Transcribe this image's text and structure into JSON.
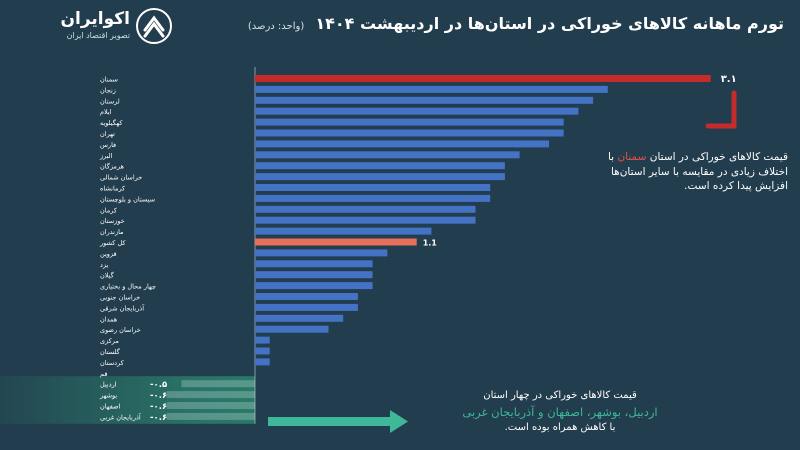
{
  "brand": {
    "name": "اکوایران",
    "tagline": "تصویر اقتصاد ایران"
  },
  "header": {
    "title": "تورم ماهانه کالاهای خوراکی در استان‌ها در اردیبهشت ۱۴۰۴",
    "unit": "(واحد: درصد)"
  },
  "annotations": {
    "red_note_prefix": "قیمت کالاهای خوراکی در استان",
    "red_note_highlight": "سمنان",
    "red_note_suffix": "با اختلاف زیادی در مقایسه با سایر استان‌ها افزایش پیدا کرده است.",
    "green_note_line1": "قیمت کالاهای خوراکی در چهار استان",
    "green_note_highlight": "اردبیل، بوشهر، اصفهان و آذربایجان غربی",
    "green_note_line3": "با کاهش همراه بوده است."
  },
  "colors": {
    "background": "#223d4d",
    "bar": "#4472c4",
    "highlight_max": "#c42b2b",
    "highlight_national": "#e8705a",
    "negative_band": "#2a7c6a",
    "accent_green": "#3fb89a",
    "accent_red": "#c42b2b"
  },
  "chart_data": {
    "type": "bar",
    "orientation": "horizontal",
    "categories": [
      "سمنان",
      "زنجان",
      "لرستان",
      "ایلام",
      "کهگیلویه",
      "تهران",
      "فارس",
      "البرز",
      "هرمزگان",
      "خراسان شمالی",
      "کرمانشاه",
      "سیستان و بلوچستان",
      "کرمان",
      "خوزستان",
      "مازندران",
      "کل کشور",
      "قزوین",
      "یزد",
      "گیلان",
      "چهار محال و بختیاری",
      "خراسان جنوبی",
      "آذربایجان شرقی",
      "همدان",
      "خراسان رضوی",
      "مرکزی",
      "گلستان",
      "کردستان",
      "قم",
      "اردبیل",
      "بوشهر",
      "اصفهان",
      "آذربایجان غربی"
    ],
    "values": [
      3.1,
      2.4,
      2.3,
      2.2,
      2.1,
      2.1,
      2.0,
      1.8,
      1.7,
      1.7,
      1.6,
      1.6,
      1.5,
      1.5,
      1.2,
      1.1,
      0.9,
      0.8,
      0.8,
      0.8,
      0.7,
      0.7,
      0.6,
      0.5,
      0.1,
      0.1,
      0.1,
      0.0,
      -0.5,
      -0.6,
      -0.6,
      -0.6
    ],
    "labels": {
      "سمنان": "۳.۱",
      "کل کشور": "1.1",
      "اردبیل": "-۰.۵",
      "بوشهر": "-۰.۶",
      "اصفهان": "-۰.۶",
      "آذربایجان غربی": "-۰.۶"
    },
    "highlights": {
      "سمنان": "highlight_max",
      "کل کشور": "highlight_national"
    },
    "xlim": [
      -0.6,
      3.1
    ],
    "grid": false,
    "legend": "none"
  }
}
